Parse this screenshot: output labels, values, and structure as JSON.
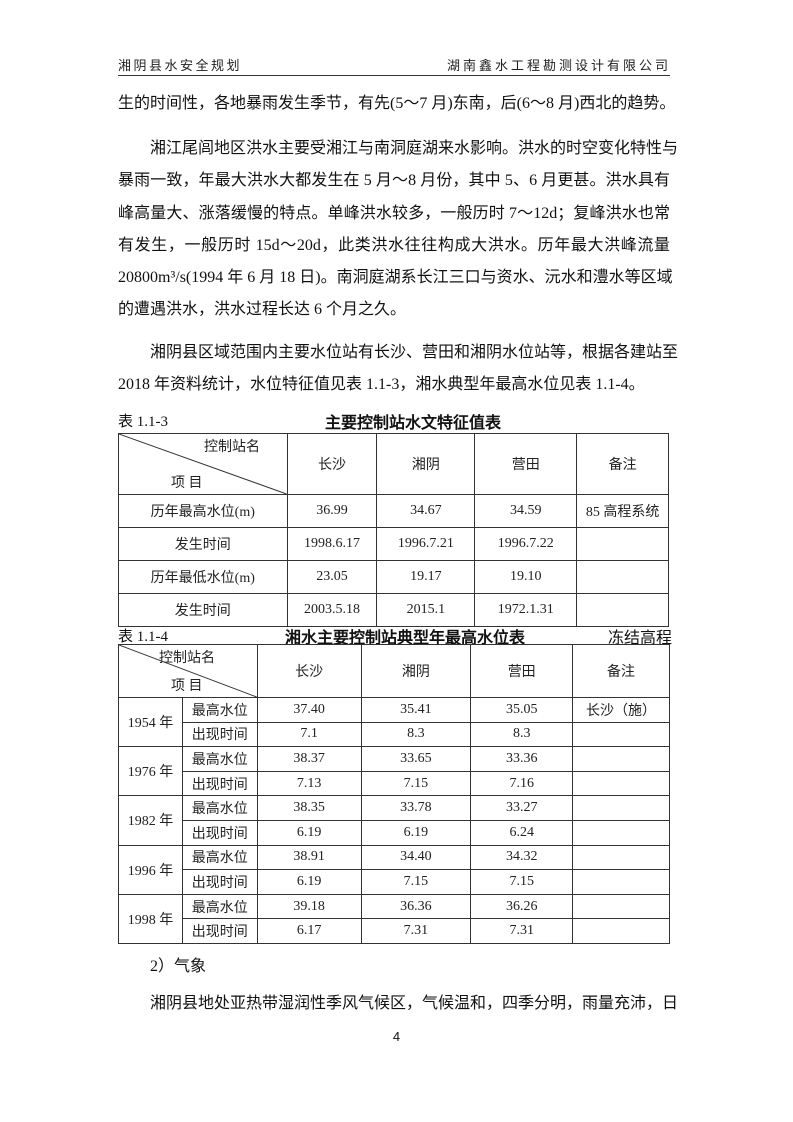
{
  "header": {
    "left": "湘阴县水安全规划",
    "right": "湖南鑫水工程勘测设计有限公司"
  },
  "paragraphs": [
    {
      "indent": false,
      "lines": [
        "生的时间性，各地暴雨发生季节，有先(5～7 月)东南，后(6～8 月)西北的趋势。"
      ]
    },
    {
      "indent": true,
      "lines": [
        "湘江尾闾地区洪水主要受湘江与南洞庭湖来水影响。洪水的时空变化特性与",
        "暴雨一致，年最大洪水大都发生在 5 月～8 月份，其中 5、6 月更甚。洪水具有",
        "峰高量大、涨落缓慢的特点。单峰洪水较多，一般历时 7～12d；复峰洪水也常",
        "有发生，一般历时 15d～20d，此类洪水往往构成大洪水。历年最大洪峰流量",
        "20800m³/s(1994 年 6 月 18 日)。南洞庭湖系长江三口与资水、沅水和澧水等区域",
        "的遭遇洪水，洪水过程长达 6 个月之久。"
      ]
    },
    {
      "indent": true,
      "lines": [
        "湘阴县区域范围内主要水位站有长沙、营田和湘阴水位站等，根据各建站至",
        "2018 年资料统计，水位特征值见表 1.1-3，湘水典型年最高水位见表 1.1-4。"
      ]
    }
  ],
  "table1": {
    "number": "表 1.1-3",
    "title": "主要控制站水文特征值表",
    "corner_top": "控制站名",
    "corner_bottom": "项  目",
    "columns": [
      "长沙",
      "湘阴",
      "营田",
      "备注"
    ],
    "rows": [
      {
        "label": "历年最高水位(m)",
        "values": [
          "36.99",
          "34.67",
          "34.59",
          "85 高程系统"
        ]
      },
      {
        "label": "发生时间",
        "values": [
          "1998.6.17",
          "1996.7.21",
          "1996.7.22",
          ""
        ]
      },
      {
        "label": "历年最低水位(m)",
        "values": [
          "23.05",
          "19.17",
          "19.10",
          ""
        ]
      },
      {
        "label": "发生时间",
        "values": [
          "2003.5.18",
          "2015.1",
          "1972.1.31",
          ""
        ]
      }
    ]
  },
  "table2": {
    "number": "表 1.1-4",
    "title": "湘水主要控制站典型年最高水位表",
    "note": "冻结高程",
    "corner_top": "控制站名",
    "corner_bottom": "项  目",
    "columns": [
      "长沙",
      "湘阴",
      "营田",
      "备注"
    ],
    "row_labels": [
      "最高水位",
      "出现时间"
    ],
    "years": [
      {
        "year": "1954 年",
        "high": [
          "37.40",
          "35.41",
          "35.05",
          "长沙（施）"
        ],
        "time": [
          "7.1",
          "8.3",
          "8.3",
          ""
        ]
      },
      {
        "year": "1976 年",
        "high": [
          "38.37",
          "33.65",
          "33.36",
          ""
        ],
        "time": [
          "7.13",
          "7.15",
          "7.16",
          ""
        ]
      },
      {
        "year": "1982 年",
        "high": [
          "38.35",
          "33.78",
          "33.27",
          ""
        ],
        "time": [
          "6.19",
          "6.19",
          "6.24",
          ""
        ]
      },
      {
        "year": "1996 年",
        "high": [
          "38.91",
          "34.40",
          "34.32",
          ""
        ],
        "time": [
          "6.19",
          "7.15",
          "7.15",
          ""
        ]
      },
      {
        "year": "1998 年",
        "high": [
          "39.18",
          "36.36",
          "36.26",
          ""
        ],
        "time": [
          "6.17",
          "7.31",
          "7.31",
          ""
        ]
      }
    ]
  },
  "section": "2）气象",
  "last_line": "湘阴县地处亚热带湿润性季风气候区，气候温和，四季分明，雨量充沛，日",
  "page_number": "4"
}
